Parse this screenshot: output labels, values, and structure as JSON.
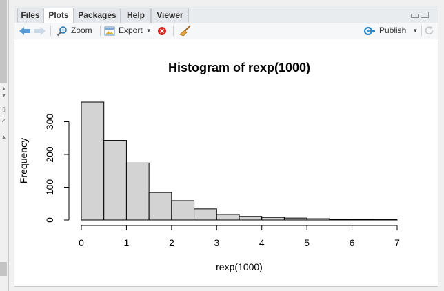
{
  "tabs": [
    {
      "label": "Files",
      "active": false
    },
    {
      "label": "Plots",
      "active": true
    },
    {
      "label": "Packages",
      "active": false
    },
    {
      "label": "Help",
      "active": false
    },
    {
      "label": "Viewer",
      "active": false
    }
  ],
  "toolbar": {
    "back_icon": "back-arrow-icon",
    "forward_icon": "forward-arrow-icon",
    "zoom_label": "Zoom",
    "export_label": "Export",
    "remove_icon": "remove-plot-icon",
    "clear_icon": "broom-icon",
    "publish_label": "Publish",
    "refresh_icon": "refresh-icon"
  },
  "colors": {
    "bar_fill": "#d3d3d3",
    "bar_stroke": "#000000",
    "back_arrow": "#5b9bd5",
    "remove": "#d9302c",
    "publish": "#2f8ccf"
  },
  "chart_data": {
    "type": "bar",
    "title": "Histogram of rexp(1000)",
    "xlabel": "rexp(1000)",
    "ylabel": "Frequency",
    "x_ticks": [
      "0",
      "1",
      "2",
      "3",
      "4",
      "5",
      "6",
      "7"
    ],
    "y_ticks": [
      "0",
      "100",
      "200",
      "300"
    ],
    "xlim": [
      0,
      7
    ],
    "ylim": [
      0,
      350
    ],
    "bin_width": 0.5,
    "bins": [
      {
        "start": 0.0,
        "count": 360
      },
      {
        "start": 0.5,
        "count": 243
      },
      {
        "start": 1.0,
        "count": 174
      },
      {
        "start": 1.5,
        "count": 84
      },
      {
        "start": 2.0,
        "count": 59
      },
      {
        "start": 2.5,
        "count": 34
      },
      {
        "start": 3.0,
        "count": 17
      },
      {
        "start": 3.5,
        "count": 11
      },
      {
        "start": 4.0,
        "count": 8
      },
      {
        "start": 4.5,
        "count": 6
      },
      {
        "start": 5.0,
        "count": 4
      },
      {
        "start": 5.5,
        "count": 2
      },
      {
        "start": 6.0,
        "count": 2
      },
      {
        "start": 6.5,
        "count": 1
      }
    ]
  }
}
